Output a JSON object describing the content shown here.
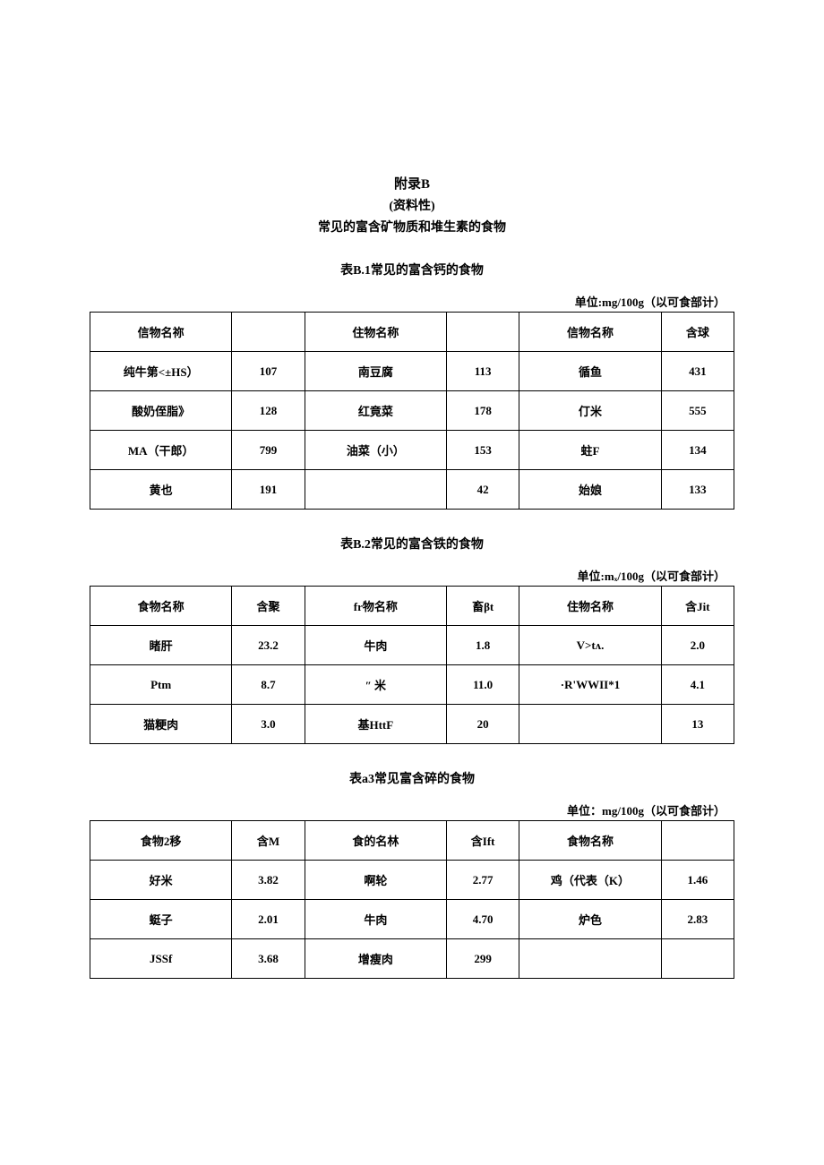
{
  "header": {
    "appendix": "附录B",
    "nature": "(资料性)",
    "title": "常见的富含矿物质和堆生素的食物"
  },
  "table1": {
    "title": "表B.1常见的富含钙的食物",
    "unit": "单位:mg/100g（以可食部计）",
    "headers": [
      "信物名祢",
      "",
      "住物名称",
      "",
      "信物名称",
      "含球"
    ],
    "rows": [
      [
        "纯牛第<±HS）",
        "107",
        "南豆腐",
        "113",
        "循鱼",
        "431"
      ],
      [
        "酸奶侄脂》",
        "128",
        "红竟菜",
        "178",
        "仃米",
        "555"
      ],
      [
        "MA（干郎）",
        "799",
        "油菜（小）",
        "153",
        "蛀F",
        "134"
      ],
      [
        "黄也",
        "191",
        "",
        "42",
        "始娘",
        "133"
      ]
    ]
  },
  "table2": {
    "title": "表B.2常见的富含铁的食物",
    "unit": "单位:mₓ/100g（以可食部计）",
    "headers": [
      "食物名称",
      "含聚",
      "fr物名称",
      "畜βt",
      "住物名称",
      "含Jit"
    ],
    "rows": [
      [
        "睹肝",
        "23.2",
        "牛肉",
        "1.8",
        "V>tᴧ.",
        "2.0"
      ],
      [
        "Ptm",
        "8.7",
        "″ 米",
        "11.0",
        "·R'WWII*1",
        "4.1"
      ],
      [
        "猫粳肉",
        "3.0",
        "基HttF",
        "20",
        "",
        "13"
      ]
    ]
  },
  "table3": {
    "title": "表a3常见富含碎的食物",
    "unit": "单位：mg/100g（以可食部计）",
    "headers": [
      "食物2移",
      "含M",
      "食的名林",
      "含Ift",
      "食物名称",
      ""
    ],
    "rows": [
      [
        "好米",
        "3.82",
        "啊轮",
        "2.77",
        "鸡（代表（K）",
        "1.46"
      ],
      [
        "蜓子",
        "2.01",
        "牛肉",
        "4.70",
        "炉色",
        "2.83"
      ],
      [
        "JSSf",
        "3.68",
        "增瘦肉",
        "299",
        "",
        ""
      ]
    ]
  }
}
